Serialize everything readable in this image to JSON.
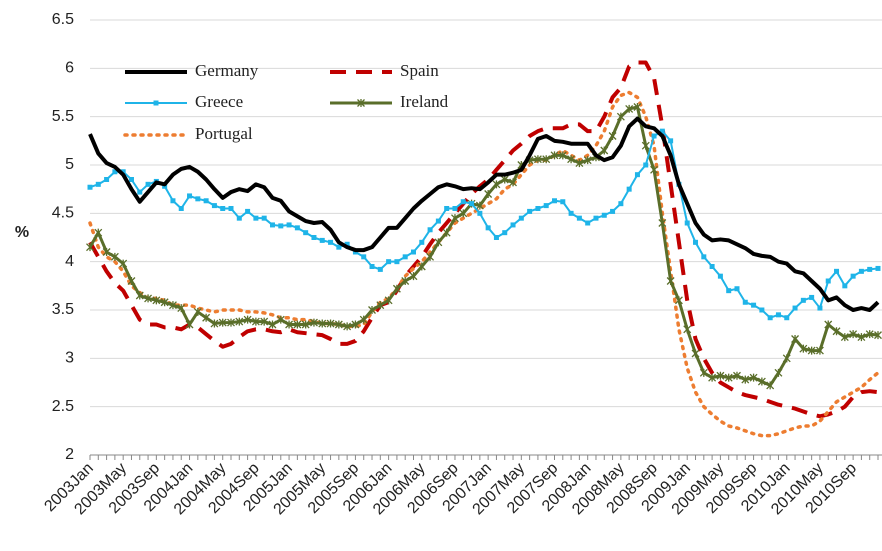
{
  "chart_data": {
    "type": "line",
    "y_label": "%",
    "ylim": [
      2,
      6.5
    ],
    "yticks": [
      2,
      2.5,
      3,
      3.5,
      4,
      4.5,
      5,
      5.5,
      6,
      6.5
    ],
    "grid": true,
    "legend": "top-left",
    "categories": [
      "2003Jan",
      null,
      null,
      null,
      "2003May",
      null,
      null,
      null,
      "2003Sep",
      null,
      null,
      null,
      "2004Jan",
      null,
      null,
      null,
      "2004May",
      null,
      null,
      null,
      "2004Sep",
      null,
      null,
      null,
      "2005Jan",
      null,
      null,
      null,
      "2005May",
      null,
      null,
      null,
      "2005Sep",
      null,
      null,
      null,
      "2006Jan",
      null,
      null,
      null,
      "2006May",
      null,
      null,
      null,
      "2006Sep",
      null,
      null,
      null,
      "2007Jan",
      null,
      null,
      null,
      "2007May",
      null,
      null,
      null,
      "2007Sep",
      null,
      null,
      null,
      "2008Jan",
      null,
      null,
      null,
      "2008May",
      null,
      null,
      null,
      "2008Sep",
      null,
      null,
      null,
      "2009Jan",
      null,
      null,
      null,
      "2009May",
      null,
      null,
      null,
      "2009Sep",
      null,
      null,
      null,
      "2010Jan",
      null,
      null,
      null,
      "2010May",
      null,
      null,
      null,
      "2010Sep",
      null,
      null,
      null
    ],
    "series": [
      {
        "name": "Germany",
        "color": "#000000",
        "dash": "solid",
        "width": 4,
        "marker": "none",
        "values": [
          5.32,
          5.12,
          5.02,
          4.98,
          4.9,
          4.75,
          4.62,
          4.72,
          4.82,
          4.8,
          4.9,
          4.96,
          4.98,
          4.93,
          4.85,
          4.75,
          4.66,
          4.72,
          4.75,
          4.73,
          4.8,
          4.77,
          4.66,
          4.63,
          4.52,
          4.47,
          4.42,
          4.4,
          4.41,
          4.33,
          4.2,
          4.15,
          4.12,
          4.12,
          4.15,
          4.25,
          4.35,
          4.35,
          4.45,
          4.55,
          4.63,
          4.7,
          4.77,
          4.8,
          4.78,
          4.75,
          4.76,
          4.75,
          4.82,
          4.9,
          4.9,
          4.92,
          4.95,
          5.1,
          5.27,
          5.3,
          5.25,
          5.24,
          5.22,
          5.22,
          5.22,
          5.1,
          5.05,
          5.08,
          5.2,
          5.4,
          5.48,
          5.4,
          5.38,
          5.3,
          5.1,
          4.8,
          4.6,
          4.4,
          4.28,
          4.22,
          4.23,
          4.22,
          4.18,
          4.14,
          4.08,
          4.06,
          4.05,
          4.0,
          3.98,
          3.9,
          3.88,
          3.8,
          3.72,
          3.6,
          3.63,
          3.55,
          3.5,
          3.52,
          3.5,
          3.58
        ]
      },
      {
        "name": "Spain",
        "color": "#c00000",
        "dash": "dashed",
        "width": 4,
        "marker": "none",
        "values": [
          4.2,
          4.05,
          3.9,
          3.78,
          3.7,
          3.55,
          3.4,
          3.35,
          3.35,
          3.32,
          3.32,
          3.3,
          3.35,
          3.32,
          3.25,
          3.18,
          3.12,
          3.15,
          3.22,
          3.28,
          3.3,
          3.3,
          3.28,
          3.27,
          3.3,
          3.27,
          3.26,
          3.25,
          3.24,
          3.2,
          3.15,
          3.15,
          3.18,
          3.28,
          3.42,
          3.55,
          3.58,
          3.7,
          3.85,
          3.95,
          4.05,
          4.18,
          4.3,
          4.4,
          4.5,
          4.6,
          4.7,
          4.78,
          4.85,
          4.95,
          5.05,
          5.15,
          5.22,
          5.3,
          5.35,
          5.38,
          5.38,
          5.38,
          5.42,
          5.42,
          5.35,
          5.35,
          5.5,
          5.7,
          5.8,
          6.02,
          6.06,
          6.06,
          5.9,
          5.4,
          4.8,
          4.2,
          3.6,
          3.2,
          3.0,
          2.85,
          2.75,
          2.7,
          2.65,
          2.62,
          2.6,
          2.58,
          2.55,
          2.52,
          2.5,
          2.48,
          2.45,
          2.42,
          2.4,
          2.42,
          2.45,
          2.5,
          2.6,
          2.65,
          2.66,
          2.65
        ]
      },
      {
        "name": "Greece",
        "color": "#1fb4e8",
        "dash": "solid",
        "width": 2,
        "marker": "square",
        "values": [
          4.77,
          4.8,
          4.85,
          4.93,
          4.93,
          4.85,
          4.72,
          4.8,
          4.83,
          4.78,
          4.63,
          4.55,
          4.68,
          4.65,
          4.63,
          4.58,
          4.55,
          4.55,
          4.45,
          4.52,
          4.45,
          4.45,
          4.38,
          4.37,
          4.38,
          4.35,
          4.3,
          4.25,
          4.22,
          4.2,
          4.15,
          4.18,
          4.1,
          4.05,
          3.95,
          3.92,
          4.0,
          4.0,
          4.05,
          4.1,
          4.2,
          4.33,
          4.42,
          4.55,
          4.55,
          4.62,
          4.6,
          4.5,
          4.35,
          4.25,
          4.3,
          4.38,
          4.45,
          4.52,
          4.55,
          4.58,
          4.63,
          4.62,
          4.5,
          4.45,
          4.4,
          4.45,
          4.48,
          4.52,
          4.6,
          4.75,
          4.9,
          5.0,
          5.3,
          5.35,
          5.25,
          4.8,
          4.4,
          4.2,
          4.05,
          3.95,
          3.85,
          3.7,
          3.72,
          3.58,
          3.55,
          3.5,
          3.42,
          3.45,
          3.42,
          3.52,
          3.6,
          3.63,
          3.52,
          3.8,
          3.9,
          3.75,
          3.85,
          3.9,
          3.92,
          3.93
        ]
      },
      {
        "name": "Ireland",
        "color": "#5a6e2a",
        "dash": "solid",
        "width": 3,
        "marker": "star",
        "values": [
          4.15,
          4.3,
          4.1,
          4.05,
          3.98,
          3.8,
          3.65,
          3.62,
          3.6,
          3.58,
          3.55,
          3.52,
          3.35,
          3.48,
          3.42,
          3.36,
          3.37,
          3.37,
          3.38,
          3.4,
          3.38,
          3.38,
          3.35,
          3.4,
          3.35,
          3.35,
          3.35,
          3.37,
          3.36,
          3.36,
          3.35,
          3.33,
          3.35,
          3.4,
          3.5,
          3.55,
          3.6,
          3.72,
          3.8,
          3.85,
          3.95,
          4.05,
          4.2,
          4.3,
          4.45,
          4.5,
          4.6,
          4.58,
          4.7,
          4.8,
          4.85,
          4.82,
          5.0,
          5.05,
          5.06,
          5.06,
          5.1,
          5.1,
          5.06,
          5.02,
          5.05,
          5.08,
          5.15,
          5.3,
          5.5,
          5.58,
          5.6,
          5.2,
          4.95,
          4.4,
          3.8,
          3.6,
          3.3,
          3.05,
          2.85,
          2.8,
          2.82,
          2.8,
          2.82,
          2.78,
          2.8,
          2.76,
          2.72,
          2.85,
          3.0,
          3.2,
          3.1,
          3.08,
          3.08,
          3.35,
          3.28,
          3.22,
          3.25,
          3.22,
          3.25,
          3.24
        ]
      },
      {
        "name": "Portugal",
        "color": "#ed7d31",
        "dash": "dotted",
        "width": 3.5,
        "marker": "none",
        "values": [
          4.4,
          4.15,
          4.05,
          4.0,
          3.9,
          3.75,
          3.68,
          3.62,
          3.62,
          3.6,
          3.55,
          3.55,
          3.55,
          3.52,
          3.5,
          3.48,
          3.5,
          3.5,
          3.5,
          3.48,
          3.48,
          3.47,
          3.45,
          3.42,
          3.42,
          3.4,
          3.4,
          3.38,
          3.36,
          3.36,
          3.35,
          3.33,
          3.33,
          3.35,
          3.48,
          3.58,
          3.62,
          3.72,
          3.85,
          3.93,
          4.0,
          4.1,
          4.2,
          4.3,
          4.4,
          4.45,
          4.5,
          4.55,
          4.6,
          4.65,
          4.75,
          4.8,
          4.9,
          5.0,
          5.05,
          5.05,
          5.1,
          5.15,
          5.1,
          5.05,
          5.1,
          5.2,
          5.35,
          5.6,
          5.72,
          5.75,
          5.7,
          5.5,
          5.2,
          4.5,
          3.9,
          3.3,
          2.9,
          2.65,
          2.5,
          2.42,
          2.35,
          2.3,
          2.28,
          2.25,
          2.22,
          2.2,
          2.2,
          2.22,
          2.25,
          2.28,
          2.3,
          2.3,
          2.35,
          2.45,
          2.55,
          2.6,
          2.65,
          2.7,
          2.78,
          2.85
        ]
      }
    ]
  }
}
